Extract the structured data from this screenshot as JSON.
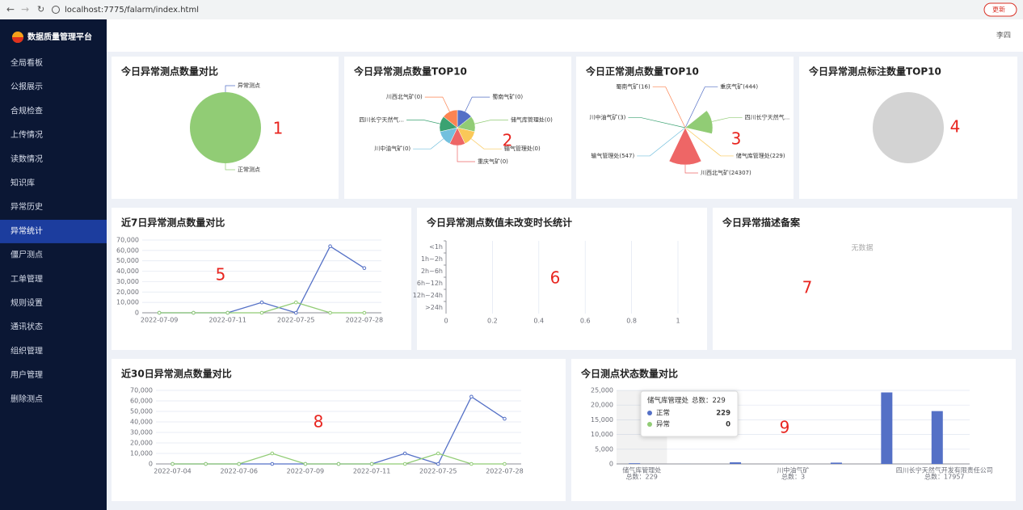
{
  "browser": {
    "url": "localhost:7775/falarm/index.html",
    "update_button": "更新"
  },
  "sidebar": {
    "title": "数据质量管理平台",
    "menu": [
      "全局看板",
      "公报展示",
      "合规检查",
      "上传情况",
      "读数情况",
      "知识库",
      "异常历史",
      "异常统计",
      "僵尸测点",
      "工单管理",
      "规则设置",
      "通讯状态",
      "组织管理",
      "用户管理",
      "删除测点"
    ],
    "active": 7
  },
  "header": {
    "user": "李四"
  },
  "panels": [
    {
      "title": "今日异常测点数量对比",
      "marker": "1",
      "chart": {
        "type": "pie",
        "labels": [
          "异常测点",
          "正常测点"
        ],
        "values": [
          0,
          25546
        ],
        "colors": [
          "#5470c6",
          "#91cc75"
        ]
      }
    },
    {
      "title": "今日异常测点数量TOP10",
      "marker": "2",
      "chart": {
        "type": "pie",
        "labels": [
          "蜀南气矿(0)",
          "储气库管理处(0)",
          "输气管理处(0)",
          "重庆气矿(0)",
          "川中油气矿(0)",
          "四川长宁天然气...",
          "川西北气矿(0)"
        ],
        "values": [
          0,
          0,
          0,
          0,
          0,
          0,
          0
        ],
        "colors": [
          "#5470c6",
          "#91cc75",
          "#fac858",
          "#ee6666",
          "#73c0de",
          "#3ba272",
          "#fc8452"
        ]
      }
    },
    {
      "title": "今日正常测点数量TOP10",
      "marker": "3",
      "chart": {
        "type": "rose",
        "labels": [
          "重庆气矿(444)",
          "四川长宁天然气...",
          "储气库管理处(229)",
          "川西北气矿(24307)",
          "输气管理处(547)",
          "川中油气矿(3)",
          "蜀南气矿(16)"
        ],
        "values": [
          444,
          17957,
          229,
          24307,
          547,
          3,
          16
        ],
        "colors": [
          "#5470c6",
          "#91cc75",
          "#fac858",
          "#ee6666",
          "#73c0de",
          "#3ba272",
          "#fc8452"
        ]
      }
    },
    {
      "title": "今日异常测点标注数量TOP10",
      "marker": "4",
      "chart": {
        "type": "pie",
        "labels": [],
        "values": [],
        "colors": []
      }
    },
    {
      "title": "近7日异常测点数量对比",
      "marker": "5",
      "chart": {
        "type": "line",
        "categories": [
          "2022-07-09",
          null,
          "2022-07-11",
          null,
          "2022-07-25",
          null,
          "2022-07-28"
        ],
        "series": [
          {
            "color": "#5470c6",
            "values": [
              0,
              0,
              0,
              10000,
              0,
              64000,
              43000
            ]
          },
          {
            "color": "#91cc75",
            "values": [
              0,
              0,
              0,
              0,
              10000,
              0,
              0
            ]
          }
        ],
        "ylim": [
          0,
          70000
        ],
        "yticks": [
          0,
          {
            "value": 10000,
            "label": "10,000"
          },
          {
            "value": 20000,
            "label": "20,000"
          },
          {
            "value": 30000,
            "label": "30,000"
          },
          {
            "value": 40000,
            "label": "40,000"
          },
          {
            "value": 50000,
            "label": "50,000"
          },
          {
            "value": 60000,
            "label": "60,000"
          },
          {
            "value": 70000,
            "label": "70,000"
          }
        ],
        "grid": true
      }
    },
    {
      "title": "今日异常测点数值未改变时长统计",
      "marker": "6",
      "chart": {
        "type": "hbar",
        "categories": [
          "<1h",
          "1h~2h",
          "2h~6h",
          "6h~12h",
          "12h~24h",
          ">24h"
        ],
        "values": [
          0,
          0,
          0,
          0,
          0,
          0
        ],
        "color": "#5470c6",
        "xlim": [
          0,
          1
        ],
        "xticks": [
          0,
          0.2,
          0.4,
          0.6,
          0.8,
          1
        ],
        "grid": true
      }
    },
    {
      "title": "今日异常描述备案",
      "marker": "7",
      "chart": {
        "type": "empty",
        "text": "无数据"
      }
    },
    {
      "title": "近30日异常测点数量对比",
      "marker": "8",
      "chart": {
        "type": "line",
        "categories": [
          "2022-07-04",
          null,
          "2022-07-06",
          null,
          "2022-07-09",
          null,
          "2022-07-11",
          null,
          "2022-07-25",
          null,
          "2022-07-28"
        ],
        "series": [
          {
            "color": "#5470c6",
            "values": [
              0,
              0,
              0,
              0,
              0,
              0,
              0,
              10000,
              0,
              64000,
              43000
            ]
          },
          {
            "color": "#91cc75",
            "values": [
              0,
              0,
              0,
              10000,
              0,
              0,
              0,
              0,
              10000,
              0,
              0
            ]
          }
        ],
        "ylim": [
          0,
          70000
        ],
        "yticks": [
          0,
          {
            "value": 10000,
            "label": "10,000"
          },
          {
            "value": 20000,
            "label": "20,000"
          },
          {
            "value": 30000,
            "label": "30,000"
          },
          {
            "value": 40000,
            "label": "40,000"
          },
          {
            "value": 50000,
            "label": "50,000"
          },
          {
            "value": 60000,
            "label": "60,000"
          },
          {
            "value": 70000,
            "label": "70,000"
          }
        ],
        "grid": true
      }
    },
    {
      "title": "今日测点状态数量对比",
      "marker": "9",
      "chart": {
        "type": "bar",
        "categories": [
          "储气库管理处",
          null,
          null,
          "川中油气矿",
          null,
          null,
          "四川长宁天然气开发有限责任公司"
        ],
        "category_sublabels": [
          "总数：229",
          null,
          null,
          "总数：3",
          null,
          null,
          "总数：17957"
        ],
        "series": [
          {
            "name": "正常",
            "color": "#5470c6",
            "values": [
              229,
              16,
              547,
              3,
              444,
              24307,
              17957
            ]
          },
          {
            "name": "异常",
            "color": "#91cc75",
            "values": [
              0,
              0,
              0,
              0,
              0,
              0,
              0
            ]
          }
        ],
        "ylim": [
          0,
          25000
        ],
        "yticks": [
          0,
          {
            "value": 5000,
            "label": "5,000"
          },
          {
            "value": 10000,
            "label": "10,000"
          },
          {
            "value": 15000,
            "label": "15,000"
          },
          {
            "value": 20000,
            "label": "20,000"
          },
          {
            "value": 25000,
            "label": "25,000"
          }
        ],
        "grid": true,
        "tooltip_index": 0
      }
    }
  ]
}
